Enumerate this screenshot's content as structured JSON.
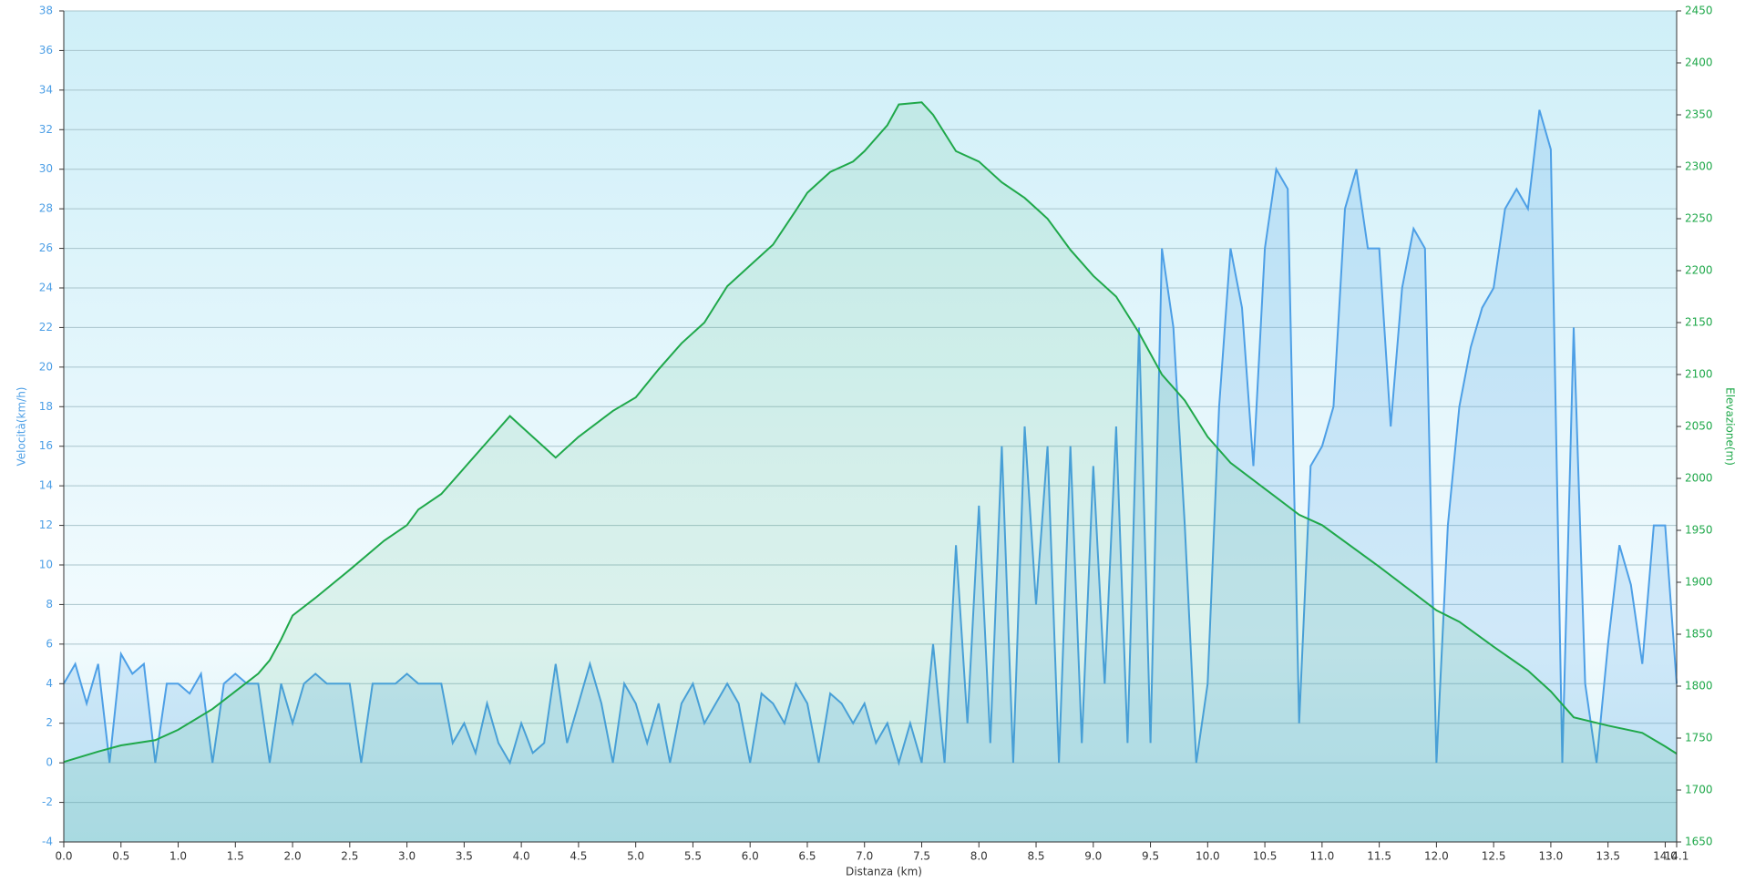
{
  "chart_data": {
    "type": "line",
    "xlabel": "Distanza  (km)",
    "ylabel": "Velocità(km/h)",
    "y2label": "Elevazione(m)",
    "xlim": [
      0,
      14.1
    ],
    "xticks": [
      {
        "value": 0,
        "label": "0.0"
      },
      0.5,
      {
        "value": 1,
        "label": "1.0"
      },
      1.5,
      {
        "value": 2,
        "label": "2.0"
      },
      2.5,
      {
        "value": 3,
        "label": "3.0"
      },
      3.5,
      {
        "value": 4,
        "label": "4.0"
      },
      4.5,
      {
        "value": 5,
        "label": "5.0"
      },
      5.5,
      {
        "value": 6,
        "label": "6.0"
      },
      6.5,
      {
        "value": 7,
        "label": "7.0"
      },
      7.5,
      {
        "value": 8,
        "label": "8.0"
      },
      8.5,
      {
        "value": 9,
        "label": "9.0"
      },
      9.5,
      {
        "value": 10,
        "label": "10.0"
      },
      10.5,
      {
        "value": 11,
        "label": "11.0"
      },
      11.5,
      {
        "value": 12,
        "label": "12.0"
      },
      12.5,
      {
        "value": 13,
        "label": "13.0"
      },
      13.5,
      {
        "value": 14,
        "label": "14.0"
      },
      14.1
    ],
    "ylim": [
      -4,
      38
    ],
    "yticks": [
      -4,
      -2,
      0,
      2,
      4,
      6,
      8,
      10,
      12,
      14,
      16,
      18,
      20,
      22,
      24,
      26,
      28,
      30,
      32,
      34,
      36,
      38
    ],
    "y2lim": [
      1650,
      2450
    ],
    "y2ticks": [
      1650,
      1700,
      1750,
      1800,
      1850,
      1900,
      1950,
      2000,
      2050,
      2100,
      2150,
      2200,
      2250,
      2300,
      2350,
      2400,
      2450
    ],
    "grid": true,
    "series": [
      {
        "name": "Velocità",
        "color": "#4d9fe6",
        "x": [
          0,
          0.1,
          0.2,
          0.3,
          0.4,
          0.5,
          0.6,
          0.7,
          0.8,
          0.9,
          1,
          1.1,
          1.2,
          1.3,
          1.4,
          1.5,
          1.6,
          1.7,
          1.8,
          1.9,
          2,
          2.1,
          2.2,
          2.3,
          2.4,
          2.5,
          2.6,
          2.7,
          2.8,
          2.9,
          3,
          3.1,
          3.2,
          3.3,
          3.4,
          3.5,
          3.6,
          3.7,
          3.8,
          3.9,
          4,
          4.1,
          4.2,
          4.3,
          4.4,
          4.5,
          4.6,
          4.7,
          4.8,
          4.9,
          5,
          5.1,
          5.2,
          5.3,
          5.4,
          5.5,
          5.6,
          5.7,
          5.8,
          5.9,
          6,
          6.1,
          6.2,
          6.3,
          6.4,
          6.5,
          6.6,
          6.7,
          6.8,
          6.9,
          7,
          7.1,
          7.2,
          7.3,
          7.4,
          7.5,
          7.6,
          7.7,
          7.8,
          7.9,
          8,
          8.1,
          8.2,
          8.3,
          8.4,
          8.5,
          8.6,
          8.7,
          8.8,
          8.9,
          9,
          9.1,
          9.2,
          9.3,
          9.4,
          9.5,
          9.6,
          9.7,
          9.8,
          9.9,
          10,
          10.1,
          10.2,
          10.3,
          10.4,
          10.5,
          10.6,
          10.7,
          10.8,
          10.9,
          11,
          11.1,
          11.2,
          11.3,
          11.4,
          11.5,
          11.6,
          11.7,
          11.8,
          11.9,
          12,
          12.1,
          12.2,
          12.3,
          12.4,
          12.5,
          12.6,
          12.7,
          12.8,
          12.9,
          13,
          13.1,
          13.2,
          13.3,
          13.4,
          13.5,
          13.6,
          13.7,
          13.8,
          13.9,
          14,
          14.1
        ],
        "values": [
          4,
          5,
          3,
          5,
          0,
          5.5,
          4.5,
          5,
          0,
          4,
          4,
          3.5,
          4.5,
          0,
          4,
          4.5,
          4,
          4,
          0,
          4,
          2,
          4,
          4.5,
          4,
          4,
          4,
          0,
          4,
          4,
          4,
          4.5,
          4,
          4,
          4,
          1,
          2,
          0.5,
          3,
          1,
          0,
          2,
          0.5,
          1,
          5,
          1,
          3,
          5,
          3,
          0,
          4,
          3,
          1,
          3,
          0,
          3,
          4,
          2,
          3,
          4,
          3,
          0,
          3.5,
          3,
          2,
          4,
          3,
          0,
          3.5,
          3,
          2,
          3,
          1,
          2,
          0,
          2,
          0,
          6,
          0,
          11,
          2,
          13,
          1,
          16,
          0,
          17,
          8,
          16,
          0,
          16,
          1,
          15,
          4,
          17,
          1,
          22,
          1,
          26,
          22,
          12,
          0,
          4,
          18,
          26,
          23,
          15,
          26,
          30,
          29,
          2,
          15,
          16,
          18,
          28,
          30,
          26,
          26,
          17,
          24,
          27,
          26,
          0,
          12,
          18,
          21,
          23,
          24,
          28,
          29,
          28,
          33,
          31,
          0,
          22,
          4,
          0,
          6,
          11,
          9,
          5,
          12,
          12,
          4
        ]
      },
      {
        "name": "Elevazione",
        "color": "#1fa84a",
        "axis": "y2",
        "x": [
          0,
          0.3,
          0.5,
          0.8,
          1,
          1.3,
          1.5,
          1.7,
          1.8,
          1.9,
          2,
          2.2,
          2.5,
          2.8,
          3,
          3.1,
          3.3,
          3.5,
          3.7,
          3.9,
          4,
          4.2,
          4.3,
          4.5,
          4.8,
          5,
          5.2,
          5.4,
          5.6,
          5.8,
          6,
          6.2,
          6.4,
          6.5,
          6.7,
          6.9,
          7,
          7.2,
          7.3,
          7.5,
          7.6,
          7.8,
          8,
          8.2,
          8.4,
          8.6,
          8.8,
          9,
          9.2,
          9.4,
          9.6,
          9.8,
          10,
          10.2,
          10.5,
          10.8,
          11,
          11.5,
          12,
          12.2,
          12.5,
          12.8,
          13,
          13.2,
          13.5,
          13.8,
          14,
          14.1
        ],
        "values": [
          1727,
          1737,
          1743,
          1748,
          1758,
          1778,
          1795,
          1812,
          1825,
          1845,
          1868,
          1885,
          1912,
          1940,
          1955,
          1970,
          1985,
          2010,
          2035,
          2060,
          2050,
          2030,
          2020,
          2040,
          2065,
          2078,
          2105,
          2130,
          2150,
          2185,
          2205,
          2225,
          2258,
          2275,
          2295,
          2305,
          2315,
          2340,
          2360,
          2362,
          2350,
          2315,
          2305,
          2285,
          2270,
          2250,
          2220,
          2195,
          2175,
          2140,
          2100,
          2075,
          2040,
          2015,
          1990,
          1965,
          1955,
          1915,
          1873,
          1862,
          1838,
          1815,
          1795,
          1770,
          1762,
          1755,
          1742,
          1735
        ]
      }
    ]
  }
}
